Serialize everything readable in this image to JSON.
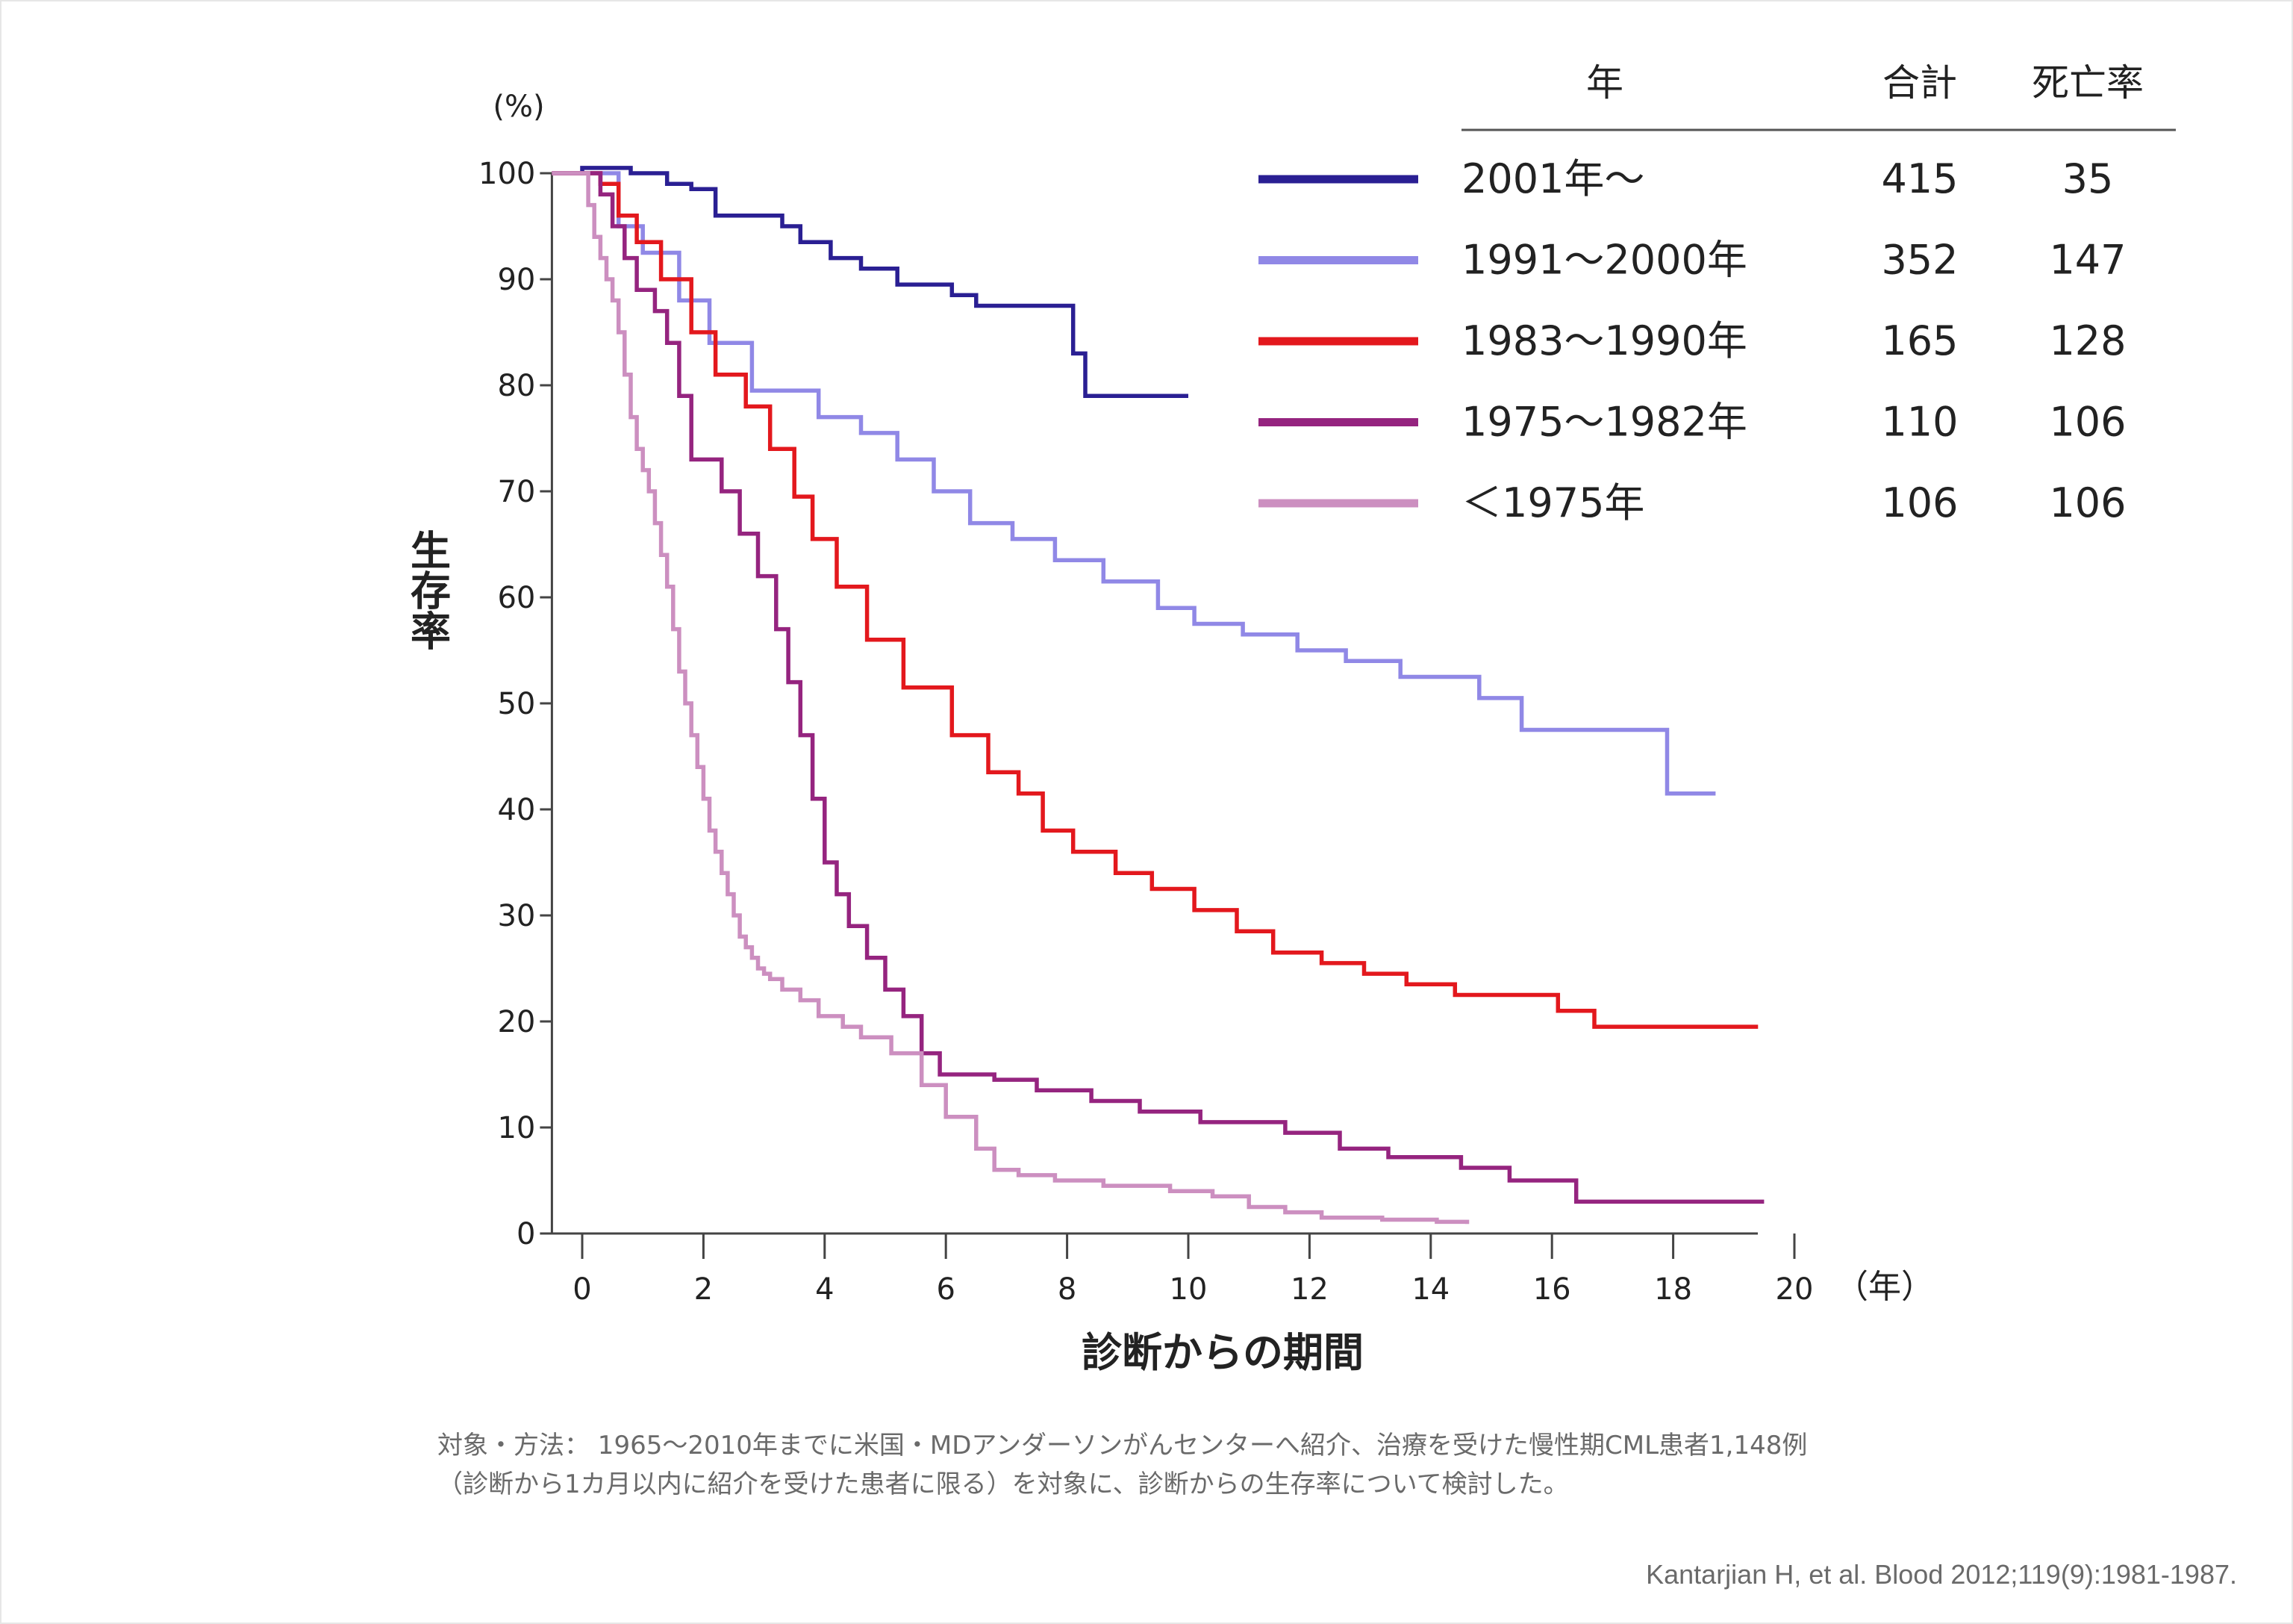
{
  "chart_data": {
    "type": "line",
    "step": true,
    "xlabel": "診断からの期間",
    "x_unit": "（年）",
    "ylabel": "生存率",
    "y_unit": "(%)",
    "xlim": [
      -0.5,
      20
    ],
    "ylim": [
      0,
      100
    ],
    "x_ticks": [
      0,
      2,
      4,
      6,
      8,
      10,
      12,
      14,
      16,
      18,
      20
    ],
    "y_ticks": [
      0,
      10,
      20,
      30,
      40,
      50,
      60,
      70,
      80,
      90,
      100
    ],
    "grid": false,
    "legend": {
      "placement": "top-right",
      "headers": [
        "年",
        "合計",
        "死亡率"
      ]
    },
    "series": [
      {
        "name": "2001年～",
        "total": "415",
        "deaths": "35",
        "color": "#2a1f93",
        "x": [
          -0.5,
          0.0,
          0.8,
          1.4,
          1.8,
          2.2,
          2.9,
          3.3,
          3.6,
          4.1,
          4.6,
          5.2,
          6.1,
          6.5,
          6.9,
          8.1,
          8.3,
          10.0
        ],
        "y": [
          100,
          100.5,
          100,
          99,
          98.5,
          96,
          96,
          95,
          93.5,
          92,
          91,
          89.5,
          88.5,
          87.5,
          87.5,
          83,
          79,
          79
        ]
      },
      {
        "name": "1991～2000年",
        "total": "352",
        "deaths": "147",
        "color": "#9088e6",
        "x": [
          -0.5,
          0.6,
          1.0,
          1.6,
          2.1,
          2.8,
          3.2,
          3.9,
          4.6,
          5.2,
          5.8,
          6.4,
          7.1,
          7.8,
          8.6,
          9.5,
          10.1,
          10.9,
          11.8,
          12.6,
          13.5,
          14.8,
          15.5,
          16.5,
          17.9,
          18.7
        ],
        "y": [
          100,
          95,
          92.5,
          88,
          84,
          79.5,
          79.5,
          77,
          75.5,
          73,
          70,
          67,
          65.5,
          63.5,
          61.5,
          59,
          57.5,
          56.5,
          55,
          54,
          52.5,
          50.5,
          47.5,
          47.5,
          41.5,
          41.5
        ]
      },
      {
        "name": "1983～1990年",
        "total": "165",
        "deaths": "128",
        "color": "#e3181d",
        "x": [
          -0.5,
          0.3,
          0.6,
          0.9,
          1.3,
          1.8,
          2.2,
          2.7,
          3.1,
          3.5,
          3.8,
          4.2,
          4.7,
          5.3,
          6.1,
          6.7,
          7.2,
          7.6,
          8.1,
          8.8,
          9.4,
          10.1,
          10.8,
          11.4,
          12.2,
          12.9,
          13.6,
          14.4,
          15.3,
          16.1,
          16.7,
          19.4
        ],
        "y": [
          100,
          99,
          96,
          93.5,
          90,
          85,
          81,
          78,
          74,
          69.5,
          65.5,
          61,
          56,
          51.5,
          47,
          43.5,
          41.5,
          38,
          36,
          34,
          32.5,
          30.5,
          28.5,
          26.5,
          25.5,
          24.5,
          23.5,
          22.5,
          22.5,
          21,
          19.5,
          19.5
        ]
      },
      {
        "name": "1975～1982年",
        "total": "110",
        "deaths": "106",
        "color": "#95247f",
        "x": [
          -0.5,
          0.3,
          0.5,
          0.7,
          0.9,
          1.2,
          1.4,
          1.6,
          1.8,
          2.0,
          2.3,
          2.6,
          2.9,
          3.2,
          3.4,
          3.6,
          3.8,
          4.0,
          4.2,
          4.4,
          4.7,
          5.0,
          5.3,
          5.6,
          5.9,
          6.3,
          6.8,
          7.5,
          8.4,
          9.2,
          10.2,
          11.6,
          12.5,
          13.3,
          14.5,
          15.3,
          16.4,
          19.5
        ],
        "y": [
          100,
          98,
          95,
          92,
          89,
          87,
          84,
          79,
          73,
          73,
          70,
          66,
          62,
          57,
          52,
          47,
          41,
          35,
          32,
          29,
          26,
          23,
          20.5,
          17,
          15,
          15,
          14.5,
          13.5,
          12.5,
          11.5,
          10.5,
          9.5,
          8,
          7.2,
          6.2,
          5,
          3,
          3
        ]
      },
      {
        "name": "＜1975年",
        "total": "106",
        "deaths": "106",
        "color": "#cc8fc0",
        "x": [
          -0.5,
          0.1,
          0.2,
          0.3,
          0.4,
          0.5,
          0.6,
          0.7,
          0.8,
          0.9,
          1.0,
          1.1,
          1.2,
          1.3,
          1.4,
          1.5,
          1.6,
          1.7,
          1.8,
          1.9,
          2.0,
          2.1,
          2.2,
          2.3,
          2.4,
          2.5,
          2.6,
          2.7,
          2.8,
          2.9,
          3.0,
          3.1,
          3.3,
          3.6,
          3.9,
          4.3,
          4.6,
          5.1,
          5.6,
          6.0,
          6.5,
          6.8,
          7.2,
          7.8,
          8.6,
          9.7,
          10.4,
          11.0,
          11.6,
          12.2,
          13.2,
          14.1,
          14.6
        ],
        "y": [
          100,
          97,
          94,
          92,
          90,
          88,
          85,
          81,
          77,
          74,
          72,
          70,
          67,
          64,
          61,
          57,
          53,
          50,
          47,
          44,
          41,
          38,
          36,
          34,
          32,
          30,
          28,
          27,
          26,
          25,
          24.5,
          24,
          23,
          22,
          20.5,
          19.5,
          18.5,
          17,
          14,
          11,
          8,
          6,
          5.5,
          5,
          4.5,
          4,
          3.5,
          2.5,
          2,
          1.5,
          1.3,
          1.1,
          0.9
        ]
      }
    ]
  },
  "footnote": {
    "line1": "対象・方法： 1965～2010年までに米国・MDアンダーソンがんセンターへ紹介、治療を受けた慢性期CML患者1,148例",
    "line2": "（診断から1カ月以内に紹介を受けた患者に限る）を対象に、診断からの生存率について検討した。"
  },
  "citation": "Kantarjian H, et al. Blood 2012;119(9):1981-1987."
}
